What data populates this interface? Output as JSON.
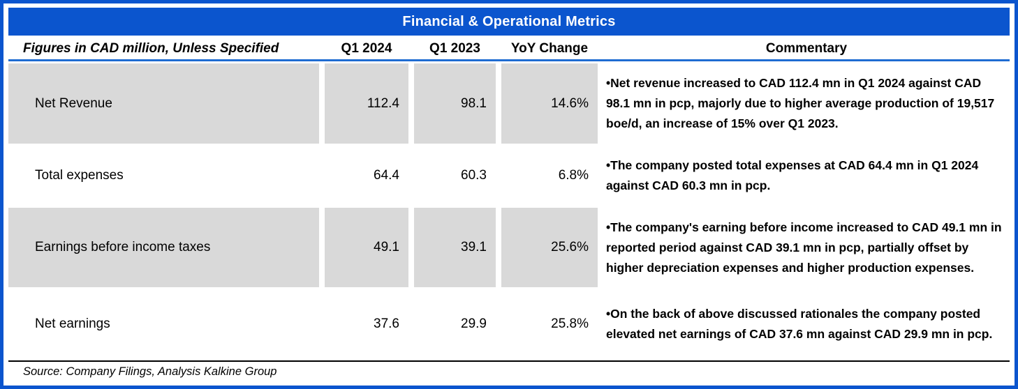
{
  "title": "Financial & Operational Metrics",
  "table": {
    "header": {
      "label": "Figures in CAD million, Unless Specified",
      "col_q1_2024": "Q1 2024",
      "col_q1_2023": "Q1 2023",
      "col_yoy": "YoY Change",
      "col_commentary": "Commentary"
    },
    "rows": [
      {
        "metric": "Net Revenue",
        "q1_2024": "112.4",
        "q1_2023": "98.1",
        "yoy": "14.6%",
        "commentary": "•Net revenue increased to CAD 112.4 mn in Q1 2024 against CAD 98.1 mn in pcp, majorly due to higher average production of 19,517 boe/d, an increase of 15% over Q1 2023."
      },
      {
        "metric": "Total expenses",
        "q1_2024": "64.4",
        "q1_2023": "60.3",
        "yoy": "6.8%",
        "commentary": "•The company posted total expenses at CAD 64.4 mn in Q1 2024 against CAD 60.3 mn in pcp."
      },
      {
        "metric": "Earnings before income taxes",
        "q1_2024": "49.1",
        "q1_2023": "39.1",
        "yoy": "25.6%",
        "commentary": "•The company's earning before income increased to CAD 49.1 mn in reported period against CAD 39.1 mn in pcp, partially offset by higher depreciation expenses and higher production expenses."
      },
      {
        "metric": "Net earnings",
        "q1_2024": "37.6",
        "q1_2023": "29.9",
        "yoy": "25.8%",
        "commentary": "•On the back of above discussed rationales the company posted elevated net earnings of CAD 37.6 mn against CAD 29.9 mn in pcp."
      }
    ]
  },
  "source": "Source: Company Filings, Analysis Kalkine Group",
  "colors": {
    "accent_blue": "#0B55CE",
    "header_underline_blue": "#1E6CD2",
    "row_shade_gray": "#D9D9D9",
    "text_black": "#000000",
    "title_text_white": "#FFFFFF"
  }
}
